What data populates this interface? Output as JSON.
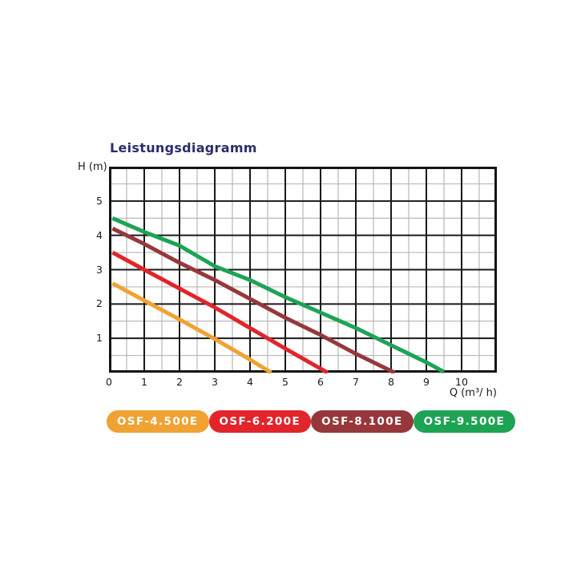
{
  "page": {
    "background": "#ffffff"
  },
  "header": {
    "title": "Leistungsdiagramm",
    "title_color": "#2a2e6b"
  },
  "axes": {
    "y_title": "H (m)",
    "x_title": "Q (m³/ h)"
  },
  "legend": [
    {
      "label": "OSF-4.500E",
      "color": "#f0a232"
    },
    {
      "label": "OSF-6.200E",
      "color": "#e2242b"
    },
    {
      "label": "OSF-8.100E",
      "color": "#96383b"
    },
    {
      "label": "OSF-9.500E",
      "color": "#1ea355"
    }
  ],
  "chart_data": {
    "type": "line",
    "title": "Leistungsdiagramm",
    "xlabel": "Q (m³/h)",
    "ylabel": "H (m)",
    "xlim": [
      0,
      11
    ],
    "ylim": [
      0,
      6
    ],
    "x_tick_labels": [
      0,
      1,
      2,
      3,
      4,
      5,
      6,
      7,
      8,
      9,
      10
    ],
    "y_tick_labels": [
      1,
      2,
      3,
      4,
      5
    ],
    "minor_step": 0.5,
    "grid": {
      "major_color": "#1a1a1a",
      "minor_color": "#b8b8b8",
      "border_color": "#141414",
      "legend_position": "bottom"
    },
    "series": [
      {
        "name": "OSF-4.500E",
        "color": "#f0a232",
        "points": [
          [
            0.1,
            2.6
          ],
          [
            1,
            2.1
          ],
          [
            2,
            1.55
          ],
          [
            3,
            0.98
          ],
          [
            4,
            0.38
          ],
          [
            4.6,
            0.0
          ]
        ]
      },
      {
        "name": "OSF-6.200E",
        "color": "#e2242b",
        "points": [
          [
            0.1,
            3.5
          ],
          [
            1,
            3.0
          ],
          [
            2,
            2.45
          ],
          [
            3,
            1.9
          ],
          [
            4,
            1.3
          ],
          [
            5,
            0.7
          ],
          [
            6.2,
            0.0
          ]
        ]
      },
      {
        "name": "OSF-8.100E",
        "color": "#96383b",
        "points": [
          [
            0.1,
            4.2
          ],
          [
            1,
            3.75
          ],
          [
            2,
            3.2
          ],
          [
            3,
            2.7
          ],
          [
            4,
            2.15
          ],
          [
            5,
            1.6
          ],
          [
            6,
            1.1
          ],
          [
            7,
            0.55
          ],
          [
            8.1,
            0.0
          ]
        ]
      },
      {
        "name": "OSF-9.500E",
        "color": "#1ea355",
        "points": [
          [
            0.1,
            4.5
          ],
          [
            1,
            4.1
          ],
          [
            2,
            3.7
          ],
          [
            3,
            3.1
          ],
          [
            4,
            2.7
          ],
          [
            5,
            2.2
          ],
          [
            6,
            1.75
          ],
          [
            7,
            1.3
          ],
          [
            8,
            0.8
          ],
          [
            9,
            0.3
          ],
          [
            9.5,
            0.02
          ]
        ]
      }
    ]
  }
}
